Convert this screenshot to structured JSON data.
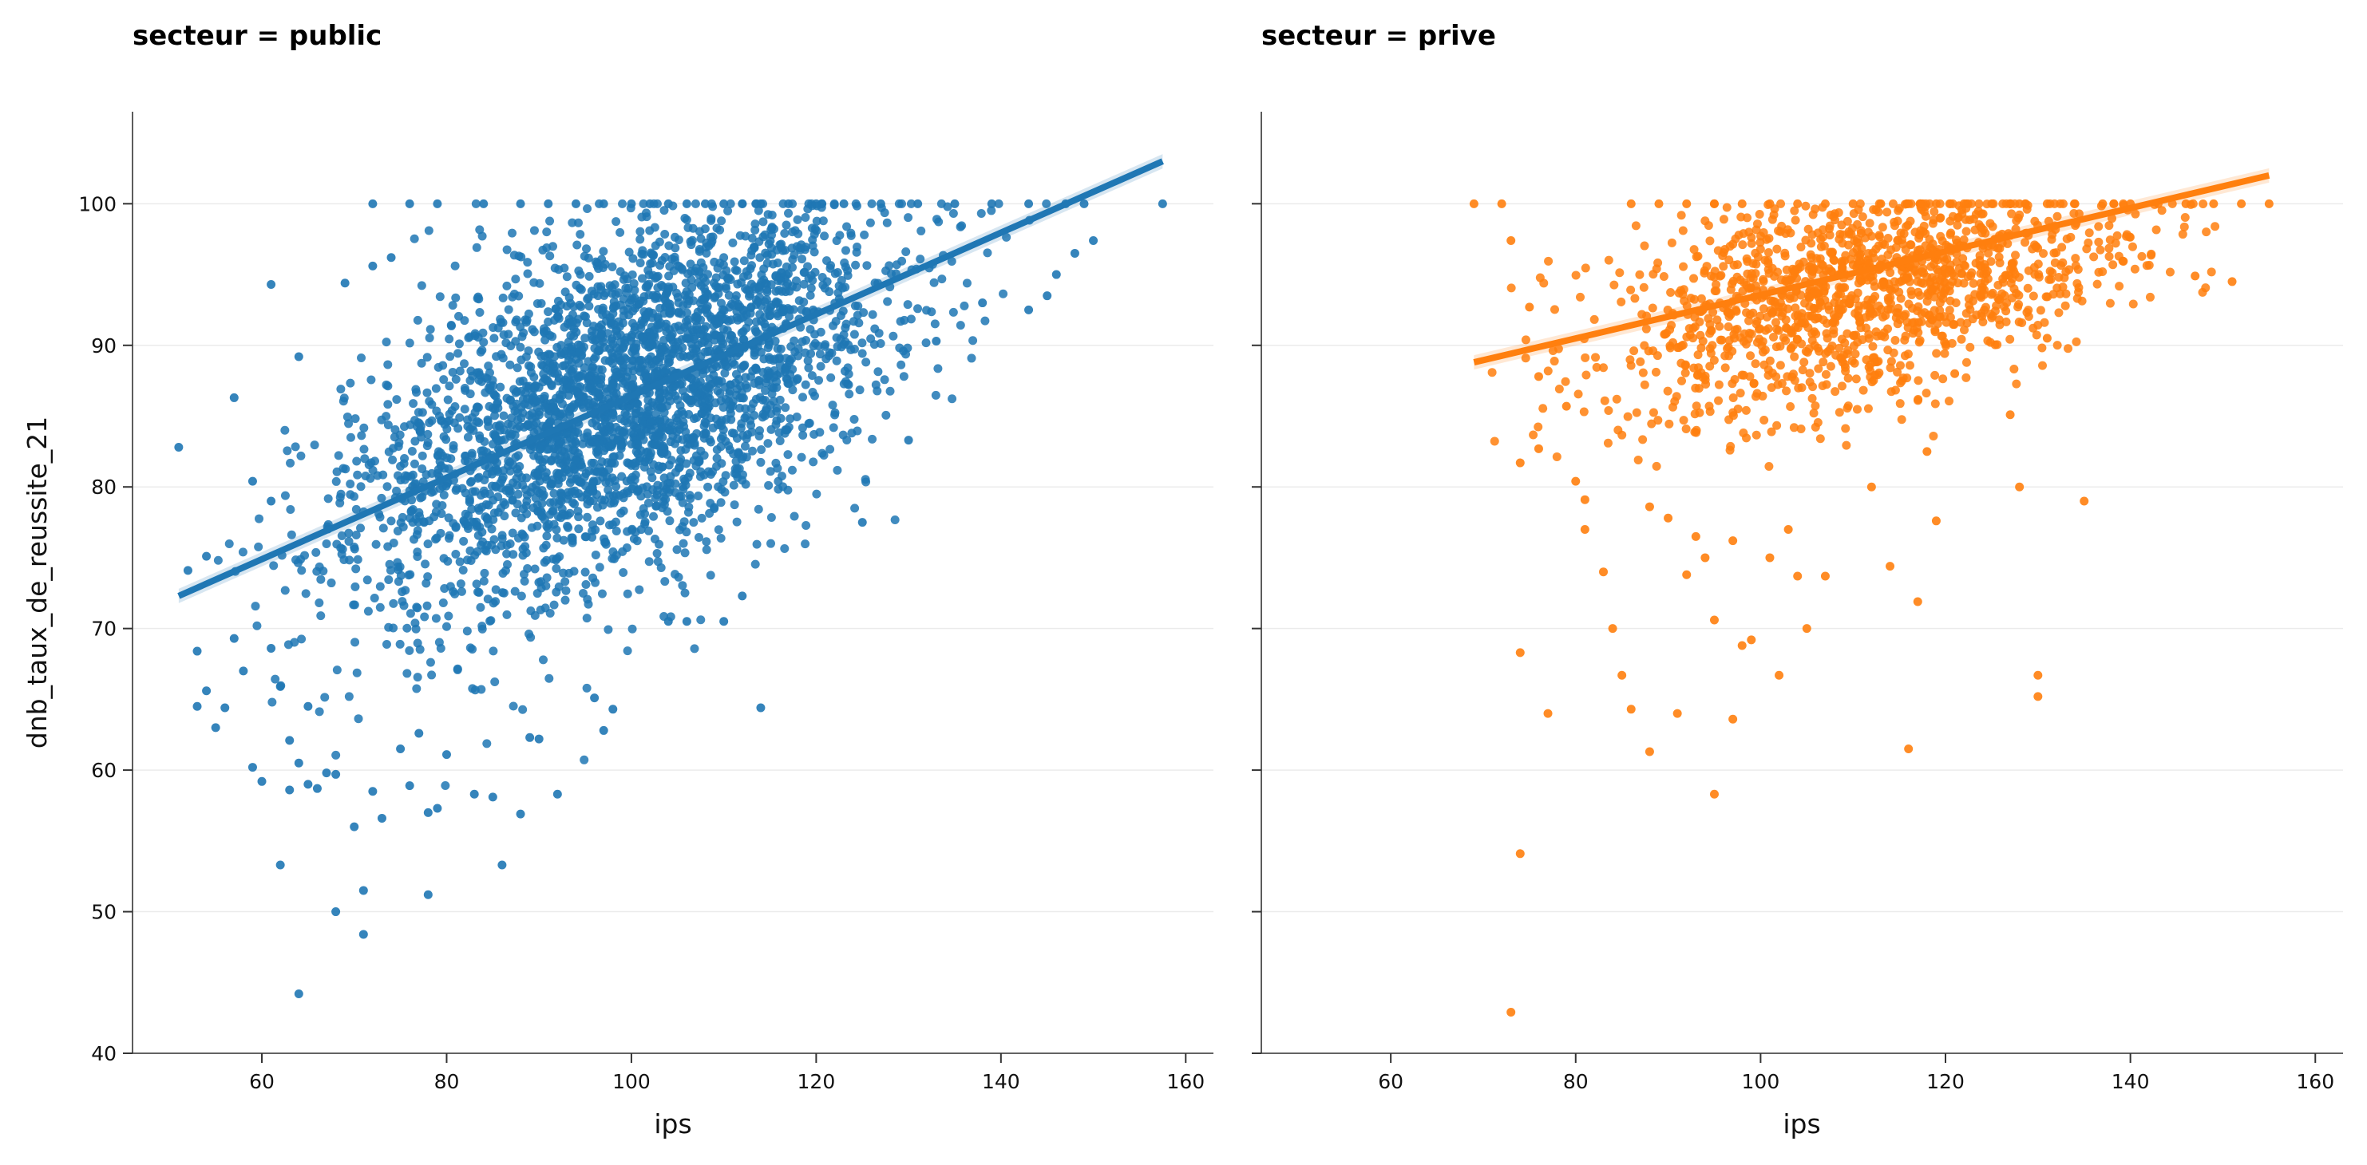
{
  "chart_data": [
    {
      "type": "scatter",
      "title": "secteur = public",
      "xlabel": "ips",
      "ylabel": "dnb_taux_de_reussite_21",
      "xlim": [
        46,
        163
      ],
      "ylim": [
        40,
        106.5
      ],
      "xticks": [
        60,
        80,
        100,
        120,
        140,
        160
      ],
      "yticks": [
        40,
        50,
        60,
        70,
        80,
        90,
        100
      ],
      "grid": "horizontal",
      "color": "#1f77b4",
      "regression": {
        "x": [
          51,
          157.5
        ],
        "y": [
          72.3,
          103.0
        ]
      },
      "points": [
        [
          51,
          82.8
        ],
        [
          52,
          74.1
        ],
        [
          53,
          68.4
        ],
        [
          53,
          64.5
        ],
        [
          54,
          75.1
        ],
        [
          54,
          65.6
        ],
        [
          55,
          63.0
        ],
        [
          56,
          64.4
        ],
        [
          57,
          86.3
        ],
        [
          57,
          69.3
        ],
        [
          58,
          67.0
        ],
        [
          59,
          60.2
        ],
        [
          59,
          80.4
        ],
        [
          60,
          59.2
        ],
        [
          61,
          79.0
        ],
        [
          61,
          68.6
        ],
        [
          61,
          94.3
        ],
        [
          62,
          53.3
        ],
        [
          62,
          65.9
        ],
        [
          63,
          58.6
        ],
        [
          63,
          62.1
        ],
        [
          64,
          44.2
        ],
        [
          64,
          60.5
        ],
        [
          64,
          89.2
        ],
        [
          65,
          59.0
        ],
        [
          65,
          64.5
        ],
        [
          66,
          58.7
        ],
        [
          67,
          59.8
        ],
        [
          68,
          59.7
        ],
        [
          68,
          50.0
        ],
        [
          69,
          94.4
        ],
        [
          70,
          56.0
        ],
        [
          71,
          48.4
        ],
        [
          71,
          51.5
        ],
        [
          72,
          58.5
        ],
        [
          72,
          95.6
        ],
        [
          73,
          56.6
        ],
        [
          74,
          96.2
        ],
        [
          75,
          61.5
        ],
        [
          76,
          58.9
        ],
        [
          77,
          62.6
        ],
        [
          78,
          51.2
        ],
        [
          78,
          57.0
        ],
        [
          79,
          57.3
        ],
        [
          80,
          61.1
        ],
        [
          83,
          58.3
        ],
        [
          85,
          58.1
        ],
        [
          86,
          53.3
        ],
        [
          88,
          56.9
        ],
        [
          89,
          62.3
        ],
        [
          90,
          62.2
        ],
        [
          92,
          58.3
        ],
        [
          96,
          65.1
        ],
        [
          97,
          62.8
        ],
        [
          98,
          64.3
        ],
        [
          104,
          70.5
        ],
        [
          106,
          70.5
        ],
        [
          110,
          70.5
        ],
        [
          112,
          72.3
        ],
        [
          114,
          64.4
        ],
        [
          125,
          77.5
        ],
        [
          130,
          83.3
        ],
        [
          133,
          90.3
        ],
        [
          138,
          93.0
        ],
        [
          143,
          92.5
        ],
        [
          145,
          93.5
        ],
        [
          146,
          95.0
        ],
        [
          148,
          96.5
        ],
        [
          149,
          100
        ],
        [
          150,
          97.4
        ],
        [
          157.5,
          100
        ],
        [
          72,
          100
        ],
        [
          76,
          100
        ],
        [
          79,
          100
        ],
        [
          84,
          100
        ],
        [
          88,
          100
        ],
        [
          91,
          100
        ],
        [
          94,
          100
        ],
        [
          97,
          100
        ],
        [
          100,
          100
        ],
        [
          102,
          100
        ],
        [
          104,
          100
        ],
        [
          106,
          100
        ],
        [
          108,
          100
        ],
        [
          110,
          100
        ],
        [
          112,
          100
        ],
        [
          114,
          100
        ],
        [
          117,
          100
        ],
        [
          120,
          100
        ],
        [
          123,
          100
        ],
        [
          127,
          100
        ],
        [
          131,
          100
        ],
        [
          135,
          100
        ],
        [
          139,
          100
        ],
        [
          143,
          100
        ],
        [
          147,
          100
        ]
      ]
    },
    {
      "type": "scatter",
      "title": "secteur = prive",
      "xlabel": "ips",
      "ylabel": "",
      "xlim": [
        46,
        163
      ],
      "ylim": [
        40,
        106.5
      ],
      "xticks": [
        60,
        80,
        100,
        120,
        140,
        160
      ],
      "yticks": [
        40,
        50,
        60,
        70,
        80,
        90,
        100
      ],
      "grid": "horizontal",
      "color": "#ff7f0e",
      "regression": {
        "x": [
          69,
          155
        ],
        "y": [
          88.8,
          102.0
        ]
      },
      "points": [
        [
          69,
          100
        ],
        [
          72,
          100
        ],
        [
          73,
          97.4
        ],
        [
          73,
          42.9
        ],
        [
          74,
          81.7
        ],
        [
          74,
          54.1
        ],
        [
          74,
          68.3
        ],
        [
          75,
          92.7
        ],
        [
          76,
          87.8
        ],
        [
          76,
          82.7
        ],
        [
          77,
          64.0
        ],
        [
          79,
          85.7
        ],
        [
          80,
          80.4
        ],
        [
          81,
          77.0
        ],
        [
          81,
          79.1
        ],
        [
          83,
          74.0
        ],
        [
          84,
          70.0
        ],
        [
          85,
          66.7
        ],
        [
          86,
          64.3
        ],
        [
          88,
          61.3
        ],
        [
          88,
          78.6
        ],
        [
          90,
          77.8
        ],
        [
          91,
          64.0
        ],
        [
          92,
          73.8
        ],
        [
          93,
          76.5
        ],
        [
          94,
          75.0
        ],
        [
          95,
          70.6
        ],
        [
          95,
          58.3
        ],
        [
          97,
          63.6
        ],
        [
          97,
          76.2
        ],
        [
          98,
          68.8
        ],
        [
          99,
          69.2
        ],
        [
          101,
          75.0
        ],
        [
          102,
          66.7
        ],
        [
          103,
          77.0
        ],
        [
          104,
          73.7
        ],
        [
          105,
          70.0
        ],
        [
          107,
          73.7
        ],
        [
          112,
          80.0
        ],
        [
          114,
          74.4
        ],
        [
          116,
          61.5
        ],
        [
          117,
          71.9
        ],
        [
          118,
          82.5
        ],
        [
          119,
          77.6
        ],
        [
          121,
          88.0
        ],
        [
          127,
          85.1
        ],
        [
          128,
          80.0
        ],
        [
          130,
          66.7
        ],
        [
          130,
          65.2
        ],
        [
          131,
          90.5
        ],
        [
          135,
          79.0
        ],
        [
          147,
          94.9
        ],
        [
          151,
          94.5
        ],
        [
          86,
          100
        ],
        [
          89,
          100
        ],
        [
          92,
          100
        ],
        [
          95,
          100
        ],
        [
          98,
          100
        ],
        [
          101,
          100
        ],
        [
          104,
          100
        ],
        [
          107,
          100
        ],
        [
          110,
          100
        ],
        [
          113,
          100
        ],
        [
          116,
          100
        ],
        [
          119,
          100
        ],
        [
          122,
          100
        ],
        [
          125,
          100
        ],
        [
          128,
          100
        ],
        [
          131,
          100
        ],
        [
          134,
          100
        ],
        [
          137,
          100
        ],
        [
          140,
          100
        ],
        [
          143,
          100
        ],
        [
          146,
          100
        ],
        [
          149,
          100
        ],
        [
          152,
          100
        ],
        [
          155,
          100
        ]
      ]
    }
  ]
}
